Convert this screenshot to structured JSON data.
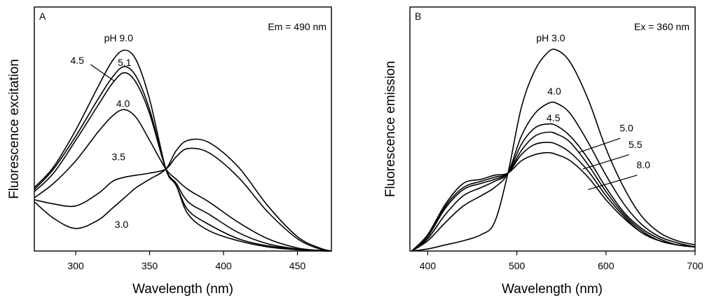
{
  "chart_data": [
    {
      "type": "line",
      "panel_label": "A",
      "annotation": "Em = 490 nm",
      "xlabel": "Wavelength (nm)",
      "ylabel": "Fluorescence excitation",
      "xlim": [
        272,
        473
      ],
      "ylim": [
        0,
        1
      ],
      "xticks": [
        300,
        350,
        400,
        450
      ],
      "grid": false,
      "series": [
        {
          "name": "pH 9.0",
          "label": "pH 9.0",
          "x": [
            272,
            285,
            300,
            315,
            325,
            333,
            341,
            350,
            361,
            368,
            376,
            390,
            410,
            430,
            450,
            465,
            473
          ],
          "y": [
            0.31,
            0.41,
            0.59,
            0.8,
            0.93,
            0.98,
            0.93,
            0.74,
            0.4,
            0.32,
            0.18,
            0.1,
            0.05,
            0.02,
            0.006,
            0.001,
            0
          ]
        },
        {
          "name": "5.1",
          "label": "5.1",
          "x": [
            272,
            285,
            300,
            315,
            325,
            333,
            341,
            350,
            361,
            368,
            376,
            390,
            410,
            430,
            450,
            465,
            473
          ],
          "y": [
            0.3,
            0.4,
            0.56,
            0.74,
            0.85,
            0.9,
            0.85,
            0.69,
            0.4,
            0.32,
            0.2,
            0.13,
            0.06,
            0.025,
            0.008,
            0.001,
            0
          ]
        },
        {
          "name": "4.5",
          "label": "4.5",
          "x": [
            272,
            285,
            300,
            315,
            325,
            333,
            341,
            350,
            361,
            368,
            376,
            390,
            410,
            430,
            450,
            465,
            473
          ],
          "y": [
            0.29,
            0.38,
            0.54,
            0.71,
            0.82,
            0.87,
            0.82,
            0.67,
            0.4,
            0.33,
            0.24,
            0.18,
            0.09,
            0.035,
            0.01,
            0.002,
            0
          ]
        },
        {
          "name": "4.0",
          "label": "4.0",
          "x": [
            272,
            285,
            300,
            315,
            325,
            333,
            341,
            350,
            361,
            368,
            376,
            390,
            410,
            430,
            450,
            465,
            473
          ],
          "y": [
            0.26,
            0.33,
            0.44,
            0.58,
            0.66,
            0.69,
            0.65,
            0.54,
            0.4,
            0.35,
            0.3,
            0.24,
            0.14,
            0.06,
            0.015,
            0.003,
            0
          ]
        },
        {
          "name": "3.5",
          "label": "3.5",
          "x": [
            272,
            285,
            300,
            315,
            325,
            333,
            341,
            350,
            361,
            368,
            376,
            390,
            410,
            430,
            450,
            465,
            473
          ],
          "y": [
            0.25,
            0.23,
            0.22,
            0.28,
            0.34,
            0.36,
            0.37,
            0.38,
            0.4,
            0.46,
            0.5,
            0.48,
            0.36,
            0.19,
            0.06,
            0.01,
            0
          ]
        },
        {
          "name": "3.0",
          "label": "3.0",
          "x": [
            272,
            285,
            300,
            315,
            325,
            333,
            341,
            350,
            361,
            368,
            376,
            390,
            410,
            430,
            450,
            465,
            473
          ],
          "y": [
            0.24,
            0.16,
            0.11,
            0.15,
            0.21,
            0.26,
            0.31,
            0.35,
            0.4,
            0.49,
            0.54,
            0.53,
            0.41,
            0.22,
            0.07,
            0.015,
            0
          ]
        }
      ],
      "labels": [
        {
          "text": "pH 9.0",
          "x": 329,
          "y": 1.04
        },
        {
          "text": "5.1",
          "x": 333,
          "y": 0.92
        },
        {
          "text": "4.5",
          "x": 301,
          "y": 0.93
        },
        {
          "text": "4.0",
          "x": 332,
          "y": 0.72
        },
        {
          "text": "3.5",
          "x": 329,
          "y": 0.46
        },
        {
          "text": "3.0",
          "x": 331,
          "y": 0.13
        }
      ],
      "leaders": [
        {
          "x1": 310,
          "y1": 0.91,
          "x2": 326,
          "y2": 0.83
        }
      ]
    },
    {
      "type": "line",
      "panel_label": "B",
      "annotation": "Ex = 360 nm",
      "xlabel": "Wavelength (nm)",
      "ylabel": "Fluorescence emission",
      "xlim": [
        380,
        700
      ],
      "ylim": [
        0,
        1
      ],
      "xticks": [
        400,
        500,
        600,
        700
      ],
      "grid": false,
      "series": [
        {
          "name": "pH 3.0",
          "label": "pH 3.0",
          "x": [
            382,
            400,
            420,
            440,
            460,
            475,
            490,
            505,
            520,
            535,
            545,
            560,
            580,
            600,
            620,
            640,
            660,
            680,
            700
          ],
          "y": [
            0,
            0.01,
            0.03,
            0.05,
            0.08,
            0.14,
            0.38,
            0.7,
            0.88,
            0.97,
            0.98,
            0.92,
            0.74,
            0.5,
            0.31,
            0.17,
            0.09,
            0.05,
            0.03
          ]
        },
        {
          "name": "4.0",
          "label": "4.0",
          "x": [
            382,
            400,
            420,
            440,
            460,
            475,
            490,
            505,
            520,
            535,
            545,
            560,
            580,
            600,
            620,
            640,
            660,
            680,
            700
          ],
          "y": [
            0,
            0.05,
            0.14,
            0.22,
            0.27,
            0.31,
            0.38,
            0.56,
            0.67,
            0.72,
            0.72,
            0.67,
            0.53,
            0.37,
            0.23,
            0.13,
            0.07,
            0.04,
            0.02
          ]
        },
        {
          "name": "4.5",
          "label": "4.5",
          "x": [
            382,
            400,
            420,
            440,
            460,
            475,
            490,
            505,
            520,
            535,
            545,
            560,
            580,
            600,
            620,
            640,
            660,
            680,
            700
          ],
          "y": [
            0,
            0.06,
            0.18,
            0.27,
            0.31,
            0.34,
            0.38,
            0.52,
            0.6,
            0.62,
            0.61,
            0.56,
            0.45,
            0.31,
            0.19,
            0.11,
            0.06,
            0.03,
            0.02
          ]
        },
        {
          "name": "5.0",
          "label": "5.0",
          "x": [
            382,
            400,
            420,
            440,
            460,
            475,
            490,
            505,
            520,
            535,
            545,
            560,
            580,
            600,
            620,
            640,
            660,
            680,
            700
          ],
          "y": [
            0,
            0.07,
            0.21,
            0.3,
            0.33,
            0.35,
            0.38,
            0.49,
            0.56,
            0.58,
            0.57,
            0.53,
            0.42,
            0.29,
            0.18,
            0.1,
            0.05,
            0.03,
            0.02
          ]
        },
        {
          "name": "5.5",
          "label": "5.5",
          "x": [
            382,
            400,
            420,
            440,
            460,
            475,
            490,
            505,
            520,
            535,
            545,
            560,
            580,
            600,
            620,
            640,
            660,
            680,
            700
          ],
          "y": [
            0,
            0.07,
            0.22,
            0.31,
            0.34,
            0.36,
            0.38,
            0.47,
            0.52,
            0.53,
            0.52,
            0.48,
            0.39,
            0.27,
            0.17,
            0.09,
            0.05,
            0.03,
            0.02
          ]
        },
        {
          "name": "8.0",
          "label": "8.0",
          "x": [
            382,
            400,
            420,
            440,
            460,
            475,
            490,
            505,
            520,
            535,
            545,
            560,
            580,
            600,
            620,
            640,
            660,
            680,
            700
          ],
          "y": [
            0,
            0.08,
            0.23,
            0.33,
            0.35,
            0.37,
            0.38,
            0.44,
            0.47,
            0.48,
            0.47,
            0.44,
            0.36,
            0.25,
            0.16,
            0.09,
            0.05,
            0.03,
            0.02
          ]
        }
      ],
      "labels": [
        {
          "text": "pH 3.0",
          "x": 538,
          "y": 1.04
        },
        {
          "text": "4.0",
          "x": 542,
          "y": 0.78
        },
        {
          "text": "4.5",
          "x": 541,
          "y": 0.65
        },
        {
          "text": "5.0",
          "x": 623,
          "y": 0.6
        },
        {
          "text": "5.5",
          "x": 633,
          "y": 0.52
        },
        {
          "text": "8.0",
          "x": 642,
          "y": 0.42
        }
      ],
      "leaders": [
        {
          "x1": 616,
          "y1": 0.55,
          "x2": 569,
          "y2": 0.48
        },
        {
          "x1": 626,
          "y1": 0.47,
          "x2": 574,
          "y2": 0.4
        },
        {
          "x1": 635,
          "y1": 0.37,
          "x2": 580,
          "y2": 0.3
        }
      ]
    }
  ]
}
